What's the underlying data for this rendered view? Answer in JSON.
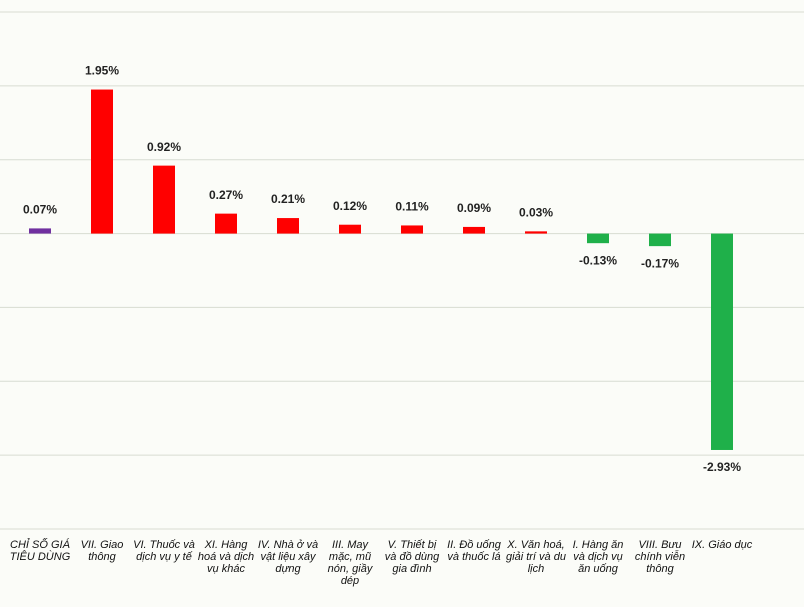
{
  "chart_data": {
    "type": "bar",
    "categories": [
      "CHỈ SỐ GIÁ TIÊU DÙNG",
      "VII. Giao thông",
      "VI. Thuốc và dịch vụ y tế",
      "XI. Hàng hoá và dịch vụ khác",
      "IV. Nhà ở và vật liệu xây dựng",
      "III. May mặc, mũ nón, giầy dép",
      "V. Thiết bị và đồ dùng gia đình",
      "II. Đồ uống và thuốc lá",
      "X. Văn hoá, giải trí và du lịch",
      "I. Hàng ăn và dịch vụ ăn uống",
      "VIII. Bưu chính viễn thông",
      "IX. Giáo dục"
    ],
    "values": [
      0.07,
      1.95,
      0.92,
      0.27,
      0.21,
      0.12,
      0.11,
      0.09,
      0.03,
      -0.13,
      -0.17,
      -2.93
    ],
    "value_labels": [
      "0.07%",
      "1.95%",
      "0.92%",
      "0.27%",
      "0.21%",
      "0.12%",
      "0.11%",
      "0.09%",
      "0.03%",
      "-0.13%",
      "-0.17%",
      "-2.93%"
    ],
    "colors": [
      "#7030a0",
      "#ff0000",
      "#ff0000",
      "#ff0000",
      "#ff0000",
      "#ff0000",
      "#ff0000",
      "#ff0000",
      "#ff0000",
      "#1fb04a",
      "#1fb04a",
      "#1fb04a"
    ],
    "ylim": [
      -4,
      3
    ],
    "yticks": [
      -4,
      -3,
      -2,
      -1,
      0,
      1,
      2,
      3
    ],
    "grid": true
  }
}
